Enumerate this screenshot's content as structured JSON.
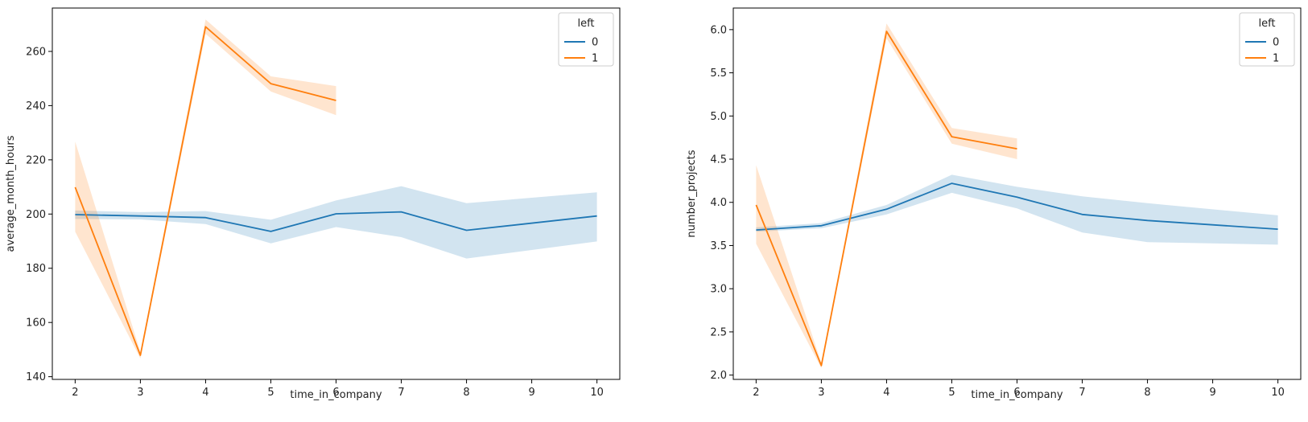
{
  "chart_data": [
    {
      "type": "line",
      "xlabel": "time_in_company",
      "ylabel": "average_month_hours",
      "xlim": [
        1.65,
        10.35
      ],
      "ylim": [
        139,
        276
      ],
      "xticks": [
        2,
        3,
        4,
        5,
        6,
        7,
        8,
        9,
        10
      ],
      "yticks": [
        140,
        160,
        180,
        200,
        220,
        240,
        260
      ],
      "grid": false,
      "legend": {
        "title": "left",
        "placement": "top-right"
      },
      "series": [
        {
          "name": "0",
          "color": "#1f77b4",
          "x": [
            2,
            3,
            4,
            5,
            6,
            7,
            8,
            10
          ],
          "y": [
            199.8,
            199.3,
            198.7,
            193.6,
            200.1,
            200.8,
            194.0,
            199.3
          ],
          "ci_low": [
            198.2,
            198.0,
            196.3,
            189.2,
            195.2,
            191.5,
            183.6,
            189.9
          ],
          "ci_high": [
            201.3,
            200.7,
            201.1,
            197.9,
            205.0,
            210.3,
            204.0,
            208.0
          ]
        },
        {
          "name": "1",
          "color": "#ff7f0e",
          "x": [
            2,
            3,
            4,
            5,
            6
          ],
          "y": [
            209.9,
            147.9,
            269.1,
            248.1,
            241.9
          ],
          "ci_low": [
            193.5,
            146.7,
            266.5,
            245.2,
            236.5
          ],
          "ci_high": [
            226.7,
            149.1,
            271.8,
            250.8,
            247.2
          ]
        }
      ]
    },
    {
      "type": "line",
      "xlabel": "time_in_company",
      "ylabel": "number_projects",
      "xlim": [
        1.65,
        10.35
      ],
      "ylim": [
        1.95,
        6.25
      ],
      "xticks": [
        2,
        3,
        4,
        5,
        6,
        7,
        8,
        9,
        10
      ],
      "yticks": [
        2.0,
        2.5,
        3.0,
        3.5,
        4.0,
        4.5,
        5.0,
        5.5,
        6.0
      ],
      "grid": false,
      "legend": {
        "title": "left",
        "placement": "top-right"
      },
      "series": [
        {
          "name": "0",
          "color": "#1f77b4",
          "x": [
            2,
            3,
            4,
            5,
            6,
            7,
            8,
            10
          ],
          "y": [
            3.68,
            3.73,
            3.92,
            4.22,
            4.06,
            3.86,
            3.79,
            3.69
          ],
          "ci_low": [
            3.66,
            3.7,
            3.86,
            4.11,
            3.93,
            3.65,
            3.54,
            3.51
          ],
          "ci_high": [
            3.71,
            3.76,
            3.97,
            4.32,
            4.18,
            4.07,
            3.99,
            3.85
          ]
        },
        {
          "name": "1",
          "color": "#ff7f0e",
          "x": [
            2,
            3,
            4,
            5,
            6
          ],
          "y": [
            3.97,
            2.11,
            5.98,
            4.76,
            4.62
          ],
          "ci_low": [
            3.52,
            2.08,
            5.9,
            4.68,
            4.5
          ],
          "ci_high": [
            4.43,
            2.14,
            6.07,
            4.86,
            4.74
          ]
        }
      ]
    }
  ]
}
